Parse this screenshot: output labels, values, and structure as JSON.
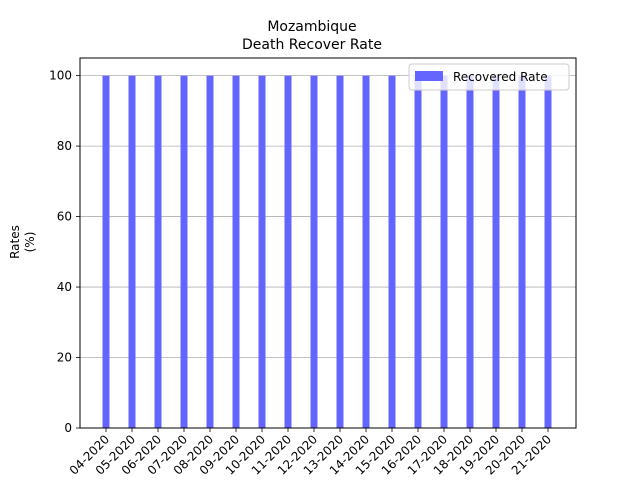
{
  "chart_data": {
    "type": "bar",
    "title_line1": "Mozambique",
    "title_line2": "Death Recover Rate",
    "ylabel_line1": "Rates",
    "ylabel_line2": "(%)",
    "xlabel": "",
    "categories": [
      "04-2020",
      "05-2020",
      "06-2020",
      "07-2020",
      "08-2020",
      "09-2020",
      "10-2020",
      "11-2020",
      "12-2020",
      "13-2020",
      "14-2020",
      "15-2020",
      "16-2020",
      "17-2020",
      "18-2020",
      "19-2020",
      "20-2020",
      "21-2020"
    ],
    "series": [
      {
        "name": "Recovered Rate",
        "color": "#6464ff",
        "values": [
          100,
          100,
          100,
          100,
          100,
          100,
          100,
          100,
          100,
          100,
          100,
          100,
          100,
          100,
          100,
          100,
          100,
          100
        ]
      }
    ],
    "ylim": [
      0,
      105
    ],
    "yticks": [
      0,
      20,
      40,
      60,
      80,
      100
    ],
    "grid": "y",
    "legend_position": "upper right"
  }
}
